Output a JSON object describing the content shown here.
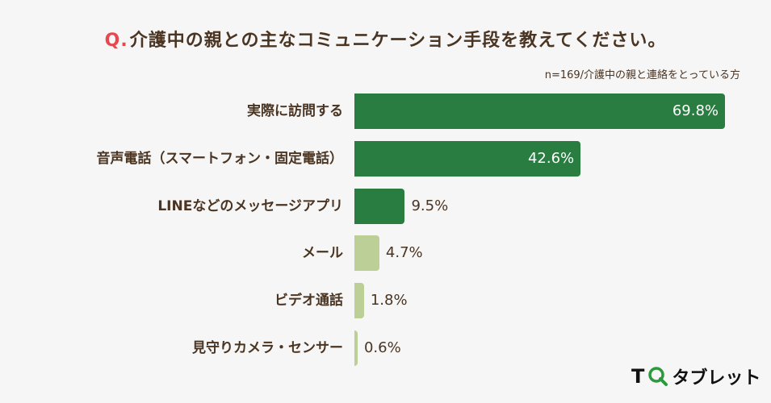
{
  "header": {
    "q_prefix": "Q.",
    "title": "介護中の親との主なコミュニケーション手段を教えてください。",
    "note": "n=169/介護中の親と連絡をとっている方"
  },
  "colors": {
    "dark_green": "#2a7d41",
    "light_green": "#bccf97",
    "text_brown": "#4a3422",
    "q_red": "#e8484d",
    "background": "#f6f6f6"
  },
  "bars": [
    {
      "label": "実際に訪問する",
      "value": 69.8,
      "display": "69.8%"
    },
    {
      "label": "音声電話（スマートフォン・固定電話）",
      "value": 42.6,
      "display": "42.6%"
    },
    {
      "label": "LINEなどのメッセージアプリ",
      "value": 9.5,
      "display": "9.5%"
    },
    {
      "label": "メール",
      "value": 4.7,
      "display": "4.7%"
    },
    {
      "label": "ビデオ通話",
      "value": 1.8,
      "display": "1.8%"
    },
    {
      "label": "見守りカメラ・センサー",
      "value": 0.6,
      "display": "0.6%"
    }
  ],
  "logo": {
    "t": "T",
    "text": "タブレット"
  },
  "chart_data": {
    "type": "bar",
    "orientation": "horizontal",
    "title": "Q.介護中の親との主なコミュニケーション手段を教えてください。",
    "subtitle": "n=169/介護中の親と連絡をとっている方",
    "categories": [
      "実際に訪問する",
      "音声電話（スマートフォン・固定電話）",
      "LINEなどのメッセージアプリ",
      "メール",
      "ビデオ通話",
      "見守りカメラ・センサー"
    ],
    "values": [
      69.8,
      42.6,
      9.5,
      4.7,
      1.8,
      0.6
    ],
    "unit": "%",
    "xlabel": "",
    "ylabel": "",
    "grid": false,
    "legend": null,
    "data_labels": true,
    "colors": [
      "#2a7d41",
      "#2a7d41",
      "#2a7d41",
      "#bccf97",
      "#bccf97",
      "#bccf97"
    ]
  }
}
